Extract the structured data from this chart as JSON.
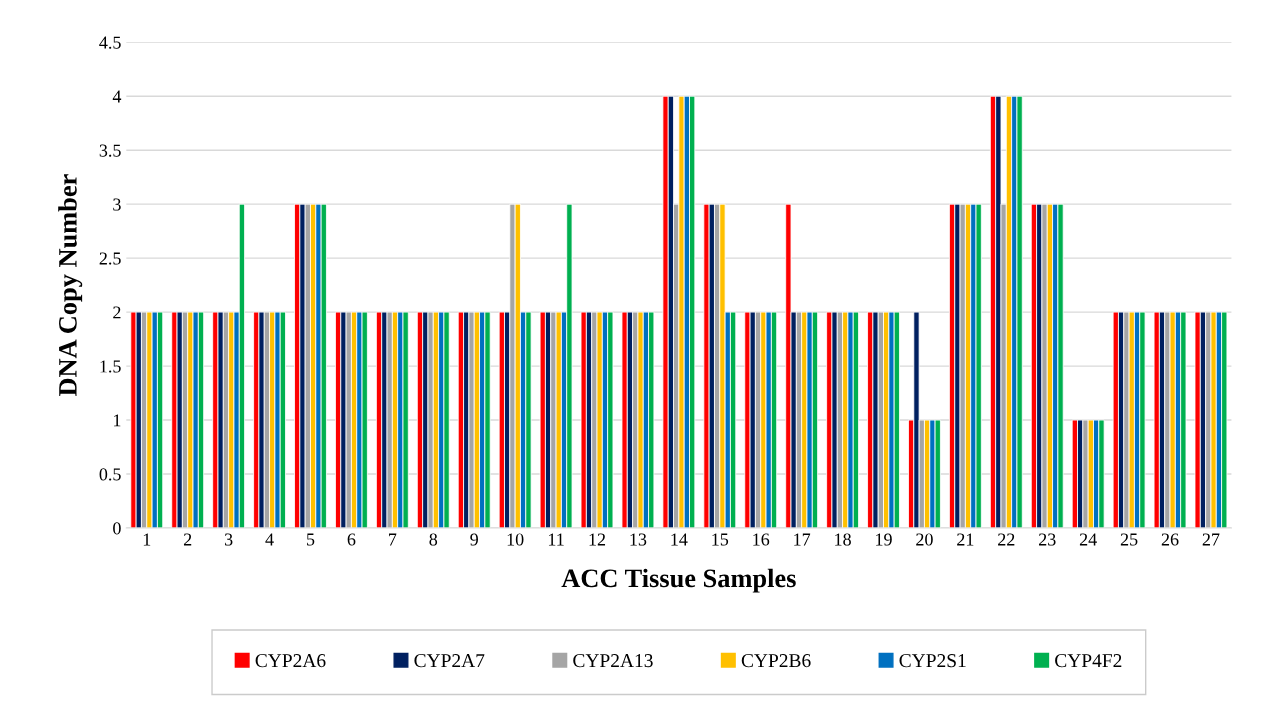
{
  "chart_data": {
    "type": "bar",
    "xlabel": "ACC Tissue Samples",
    "ylabel": "DNA Copy Number",
    "categories": [
      "1",
      "2",
      "3",
      "4",
      "5",
      "6",
      "7",
      "8",
      "9",
      "10",
      "11",
      "12",
      "13",
      "14",
      "15",
      "16",
      "17",
      "18",
      "19",
      "20",
      "21",
      "22",
      "23",
      "24",
      "25",
      "26",
      "27"
    ],
    "series": [
      {
        "name": "CYP2A6",
        "color": "#ff0000",
        "values": [
          2,
          2,
          2,
          2,
          3,
          2,
          2,
          2,
          2,
          2,
          2,
          2,
          2,
          4,
          3,
          2,
          3,
          2,
          2,
          1,
          3,
          4,
          3,
          1,
          2,
          2,
          2
        ]
      },
      {
        "name": "CYP2A7",
        "color": "#002060",
        "values": [
          2,
          2,
          2,
          2,
          3,
          2,
          2,
          2,
          2,
          2,
          2,
          2,
          2,
          4,
          3,
          2,
          2,
          2,
          2,
          2,
          3,
          4,
          3,
          1,
          2,
          2,
          2
        ]
      },
      {
        "name": "CYP2A13",
        "color": "#a5a5a5",
        "values": [
          2,
          2,
          2,
          2,
          3,
          2,
          2,
          2,
          2,
          3,
          2,
          2,
          2,
          3,
          3,
          2,
          2,
          2,
          2,
          1,
          3,
          3,
          3,
          1,
          2,
          2,
          2
        ]
      },
      {
        "name": "CYP2B6",
        "color": "#ffc000",
        "values": [
          2,
          2,
          2,
          2,
          3,
          2,
          2,
          2,
          2,
          3,
          2,
          2,
          2,
          4,
          3,
          2,
          2,
          2,
          2,
          1,
          3,
          4,
          3,
          1,
          2,
          2,
          2
        ]
      },
      {
        "name": "CYP2S1",
        "color": "#0070c0",
        "values": [
          2,
          2,
          2,
          2,
          3,
          2,
          2,
          2,
          2,
          2,
          2,
          2,
          2,
          4,
          2,
          2,
          2,
          2,
          2,
          1,
          3,
          4,
          3,
          1,
          2,
          2,
          2
        ]
      },
      {
        "name": "CYP4F2",
        "color": "#00b050",
        "values": [
          2,
          2,
          3,
          2,
          3,
          2,
          2,
          2,
          2,
          2,
          3,
          2,
          2,
          4,
          2,
          2,
          2,
          2,
          2,
          1,
          3,
          4,
          3,
          1,
          2,
          2,
          2
        ]
      }
    ],
    "ylim": [
      0,
      4.5
    ],
    "yticks": [
      0,
      0.5,
      1,
      1.5,
      2,
      2.5,
      3,
      3.5,
      4,
      4.5
    ],
    "grid": "y",
    "legend": "bottom"
  }
}
